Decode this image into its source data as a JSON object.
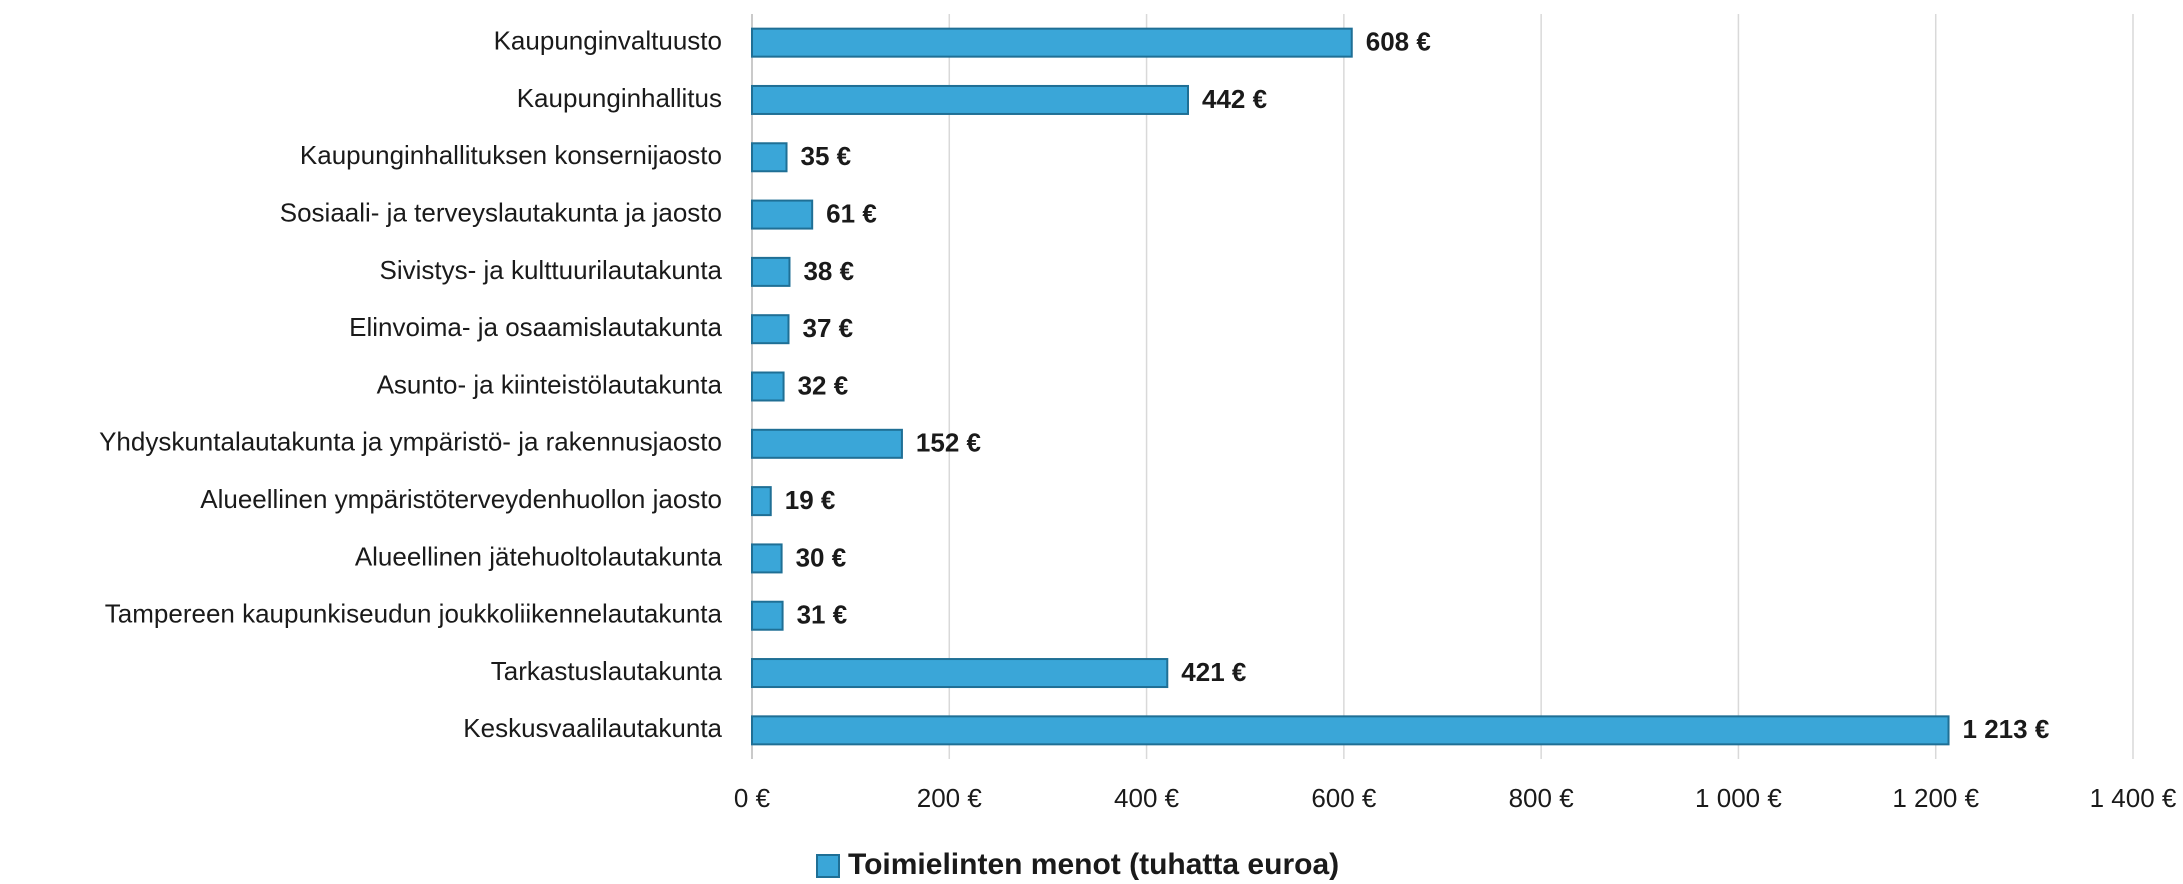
{
  "chart_data": {
    "type": "hbar",
    "categories": [
      "Kaupunginvaltuusto",
      "Kaupunginhallitus",
      "Kaupunginhallituksen konsernijaosto",
      "Sosiaali- ja terveyslautakunta ja jaosto",
      "Sivistys- ja kulttuurilautakunta",
      "Elinvoima- ja osaamislautakunta",
      "Asunto- ja kiinteistölautakunta",
      "Yhdyskuntalautakunta ja ympäristö- ja rakennusjaosto",
      "Alueellinen ympäristöterveydenhuollon jaosto",
      "Alueellinen jätehuoltolautakunta",
      "Tampereen kaupunkiseudun joukkoliikennelautakunta",
      "Tarkastuslautakunta",
      "Keskusvaalilautakunta"
    ],
    "series": [
      {
        "name": "Toimielinten menot (tuhatta euroa)",
        "color": "#3aa6d8",
        "values": [
          608,
          442,
          35,
          61,
          38,
          37,
          32,
          152,
          19,
          30,
          31,
          421,
          1213
        ],
        "value_labels": [
          "608 €",
          "442 €",
          "35 €",
          "61 €",
          "38 €",
          "37 €",
          "32 €",
          "152 €",
          "19 €",
          "30 €",
          "31 €",
          "421 €",
          "1 213 €"
        ]
      }
    ],
    "xlim": [
      0,
      1400
    ],
    "xticks": [
      {
        "value": 0,
        "label": "0 €"
      },
      {
        "value": 200,
        "label": "200 €"
      },
      {
        "value": 400,
        "label": "400 €"
      },
      {
        "value": 600,
        "label": "600 €"
      },
      {
        "value": 800,
        "label": "800 €"
      },
      {
        "value": 1000,
        "label": "1 000 €"
      },
      {
        "value": 1200,
        "label": "1 200 €"
      },
      {
        "value": 1400,
        "label": "1 400 €"
      }
    ],
    "grid": true,
    "legend": "bottom"
  }
}
